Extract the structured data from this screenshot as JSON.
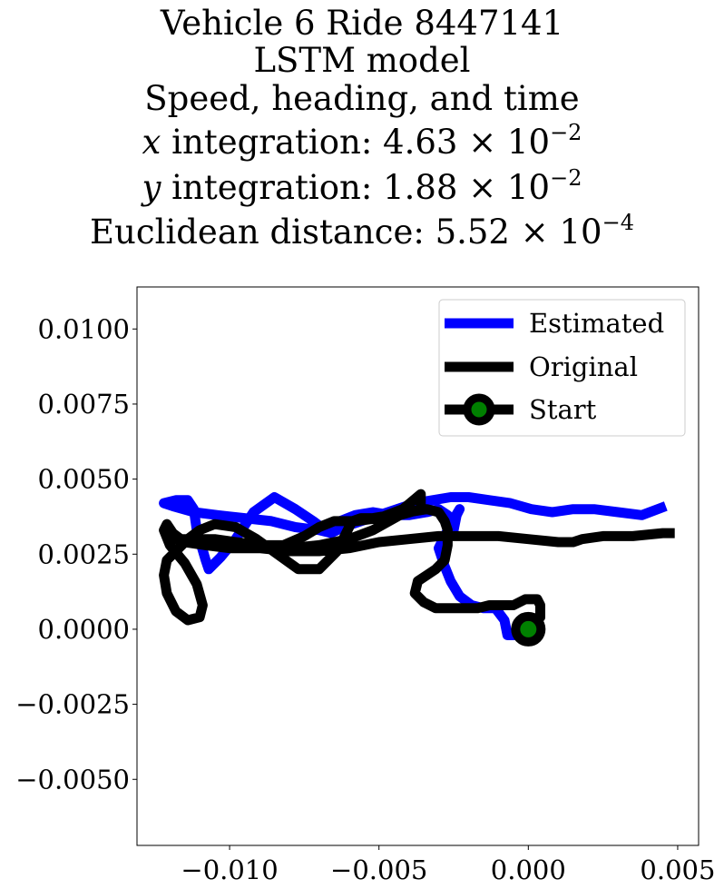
{
  "titles": {
    "line1": "Vehicle 6 Ride 8447141",
    "line2": "LSTM model",
    "line3": "Speed, heading, and time",
    "x_var": "x",
    "x_text": " integration: 4.63 × 10",
    "x_exp": "−2",
    "y_var": "y",
    "y_text": " integration: 1.88 × 10",
    "y_exp": "−2",
    "dist_text": "Euclidean distance: 5.52 × 10",
    "dist_exp": "−4"
  },
  "chart_data": {
    "type": "line",
    "title": "Vehicle 6 Ride 8447141 / LSTM model / Speed, heading, and time",
    "xlim": [
      -0.0131,
      0.0057
    ],
    "ylim": [
      -0.0072,
      0.0114
    ],
    "xticks": [
      -0.01,
      -0.005,
      0.0,
      0.005
    ],
    "xtick_labels": [
      "−0.010",
      "−0.005",
      "0.000",
      "0.005"
    ],
    "yticks": [
      0.01,
      0.0075,
      0.005,
      0.0025,
      0.0,
      -0.0025,
      -0.005
    ],
    "ytick_labels": [
      "0.0100",
      "0.0075",
      "0.0050",
      "0.0025",
      "0.0000",
      "−0.0025",
      "−0.0050"
    ],
    "grid": false,
    "legend_position": "top-right",
    "legend": [
      "Estimated",
      "Original",
      "Start"
    ],
    "series": [
      {
        "name": "Estimated",
        "color": "#0000ff",
        "x": [
          0.0,
          -0.0007,
          -0.0008,
          -0.0011,
          -0.0015,
          -0.0019,
          -0.0023,
          -0.0026,
          -0.0028,
          -0.003,
          -0.0026,
          -0.0023,
          -0.0024,
          -0.0025,
          -0.0027,
          -0.003,
          -0.0034,
          -0.004,
          -0.0046,
          -0.0052,
          -0.0058,
          -0.0063,
          -0.0068,
          -0.0072,
          -0.0078,
          -0.0085,
          -0.0092,
          -0.0098,
          -0.0103,
          -0.0107,
          -0.0108,
          -0.0111,
          -0.0112,
          -0.0114,
          -0.0118,
          -0.0122,
          -0.0119,
          -0.0112,
          -0.0104,
          -0.0095,
          -0.0086,
          -0.0078,
          -0.007,
          -0.0066,
          -0.0062,
          -0.0056,
          -0.005,
          -0.0044,
          -0.0038,
          -0.0032,
          -0.0026,
          -0.002,
          -0.0013,
          -0.0006,
          0.0001,
          0.0008,
          0.0015,
          0.0022,
          0.003,
          0.0038,
          0.0046
        ],
        "y": [
          -0.0002,
          -0.0002,
          0.0003,
          0.0007,
          0.0007,
          0.0008,
          0.0011,
          0.0016,
          0.0021,
          0.0027,
          0.0035,
          0.004,
          0.0038,
          0.0033,
          0.0038,
          0.004,
          0.0039,
          0.0038,
          0.0038,
          0.0039,
          0.0038,
          0.0036,
          0.0033,
          0.0036,
          0.004,
          0.0044,
          0.0039,
          0.003,
          0.0024,
          0.002,
          0.0023,
          0.0033,
          0.004,
          0.0043,
          0.0043,
          0.0042,
          0.0041,
          0.0039,
          0.0038,
          0.0037,
          0.0036,
          0.0034,
          0.0033,
          0.0032,
          0.0034,
          0.0036,
          0.0038,
          0.004,
          0.0042,
          0.0043,
          0.0044,
          0.0044,
          0.0043,
          0.0042,
          0.004,
          0.0039,
          0.004,
          0.004,
          0.0039,
          0.0038,
          0.0041
        ]
      },
      {
        "name": "Original",
        "color": "#000000",
        "x": [
          0.0,
          0.0004,
          0.0004,
          0.0003,
          0.0001,
          -0.0001,
          -0.0005,
          -0.0009,
          -0.0013,
          -0.0017,
          -0.002,
          -0.0026,
          -0.0031,
          -0.0035,
          -0.0038,
          -0.0037,
          -0.0034,
          -0.0031,
          -0.0028,
          -0.0027,
          -0.0027,
          -0.0028,
          -0.003,
          -0.0034,
          -0.004,
          -0.0046,
          -0.0052,
          -0.0056,
          -0.0059,
          -0.0064,
          -0.007,
          -0.0077,
          -0.0084,
          -0.0091,
          -0.0098,
          -0.0105,
          -0.011,
          -0.0114,
          -0.0117,
          -0.0121,
          -0.0122,
          -0.0121,
          -0.0118,
          -0.0114,
          -0.011,
          -0.0109,
          -0.0111,
          -0.0115,
          -0.012,
          -0.0122,
          -0.0121,
          -0.0119,
          -0.0115,
          -0.0108,
          -0.01,
          -0.009,
          -0.008,
          -0.007,
          -0.006,
          -0.0052,
          -0.0043,
          -0.0036,
          -0.0036,
          -0.0042,
          -0.005,
          -0.0058,
          -0.0065,
          -0.007,
          -0.0075,
          -0.0082,
          -0.009,
          -0.0098,
          -0.0105,
          -0.0111,
          -0.0115,
          -0.0118,
          -0.011,
          -0.01,
          -0.009,
          -0.008,
          -0.007,
          -0.006,
          -0.005,
          -0.004,
          -0.003,
          -0.002,
          -0.001,
          0.0,
          0.001,
          0.0015,
          0.0018,
          0.0025,
          0.0035,
          0.0045,
          0.0049
        ],
        "y": [
          0.0,
          0.0004,
          0.0008,
          0.001,
          0.001,
          0.001,
          0.0008,
          0.0008,
          0.0008,
          0.0007,
          0.0007,
          0.0007,
          0.0007,
          0.0009,
          0.0012,
          0.0016,
          0.0018,
          0.002,
          0.0023,
          0.0028,
          0.0033,
          0.0036,
          0.0039,
          0.004,
          0.0039,
          0.0038,
          0.0037,
          0.0037,
          0.0036,
          0.0026,
          0.002,
          0.002,
          0.0025,
          0.003,
          0.0034,
          0.0035,
          0.0033,
          0.003,
          0.0027,
          0.0023,
          0.0018,
          0.0012,
          0.0006,
          0.0003,
          0.0004,
          0.0008,
          0.0015,
          0.0022,
          0.0028,
          0.0033,
          0.0035,
          0.0032,
          0.0029,
          0.0028,
          0.0027,
          0.0027,
          0.0027,
          0.0028,
          0.003,
          0.0033,
          0.0038,
          0.004,
          0.0045,
          0.004,
          0.0037,
          0.0036,
          0.0036,
          0.0034,
          0.0031,
          0.0028,
          0.0028,
          0.0029,
          0.003,
          0.003,
          0.003,
          0.003,
          0.0029,
          0.0028,
          0.0027,
          0.0026,
          0.0026,
          0.0027,
          0.0029,
          0.003,
          0.0031,
          0.0031,
          0.0031,
          0.003,
          0.0029,
          0.0029,
          0.003,
          0.0031,
          0.0031,
          0.0032,
          0.0032
        ]
      },
      {
        "name": "Start",
        "color": "#000000",
        "marker_face": "#008000",
        "x": [
          0.0
        ],
        "y": [
          0.0
        ]
      }
    ]
  }
}
